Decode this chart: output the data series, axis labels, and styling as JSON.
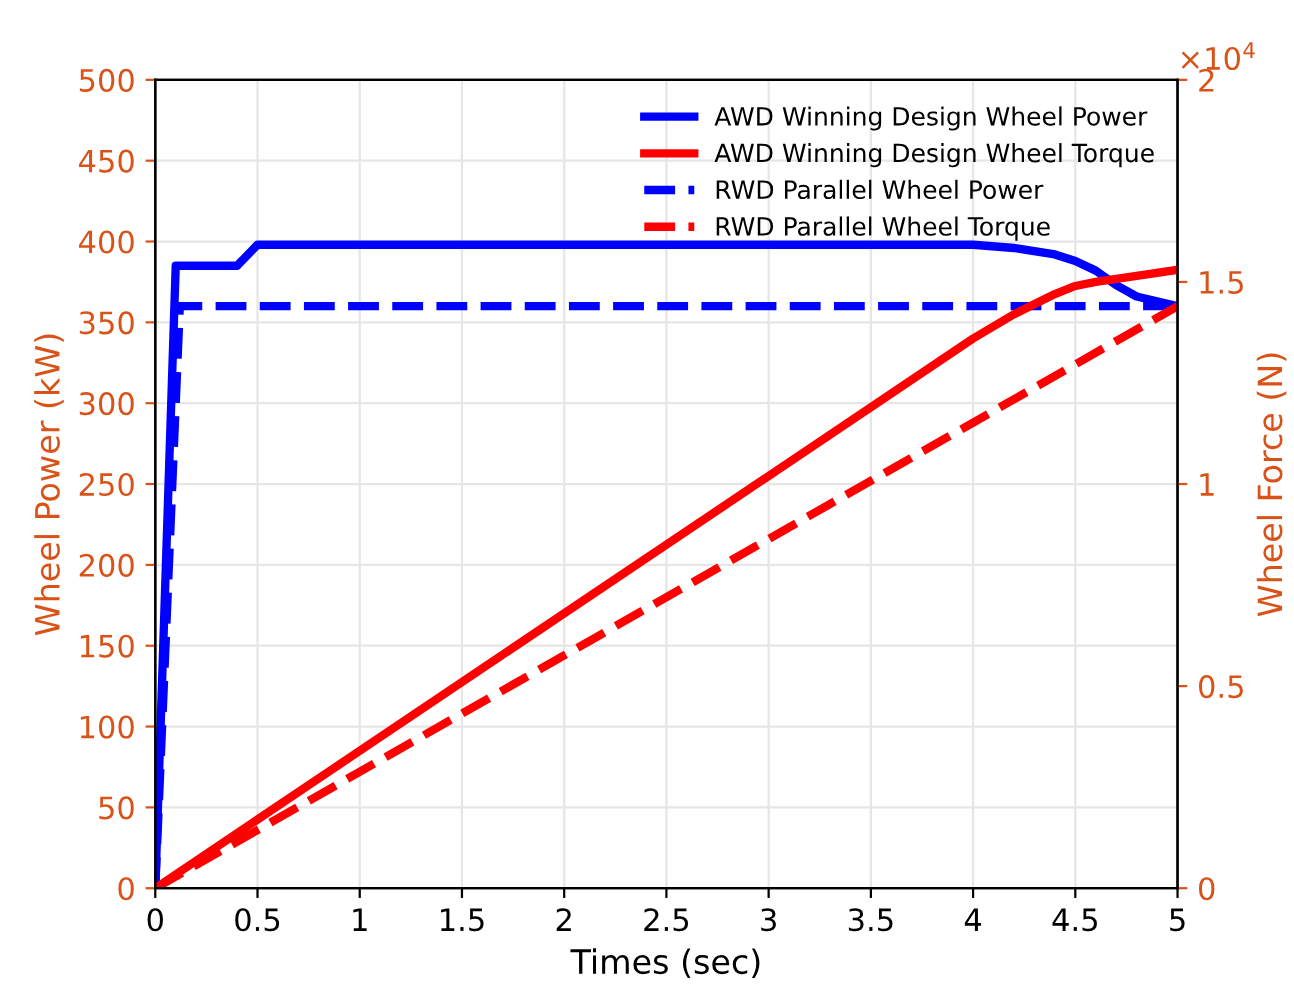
{
  "chart_data": {
    "type": "line",
    "xlabel": "Times (sec)",
    "ylabel": "Wheel Power (kW)",
    "y2label": "Wheel Force (N)",
    "xlim": [
      0,
      5
    ],
    "xticks": [
      0,
      0.5,
      1,
      1.5,
      2,
      2.5,
      3,
      3.5,
      4,
      4.5,
      5
    ],
    "ylim": [
      0,
      500
    ],
    "yticks": [
      0,
      50,
      100,
      150,
      200,
      250,
      300,
      350,
      400,
      450,
      500
    ],
    "y2lim": [
      0,
      2
    ],
    "y2ticks": [
      0,
      0.5,
      1,
      1.5,
      2
    ],
    "annotations": [
      "×10$^{4}$"
    ],
    "grid": true,
    "legend": "top right",
    "series": [
      {
        "name": "AWD Winning Design Wheel Power",
        "color": "#0000ff",
        "line_style": "solid",
        "x": [
          0,
          0.1,
          0.4,
          0.5,
          4.0,
          4.2,
          4.4,
          4.5,
          4.6,
          4.7,
          4.8,
          5
        ],
        "values": [
          0,
          385,
          385,
          398,
          398,
          396,
          392,
          388,
          382,
          373,
          366,
          360
        ]
      },
      {
        "name": "AWD Winning Design Wheel Torque",
        "color": "#ff0000",
        "axis": "y2",
        "line_style": "solid",
        "x": [
          0,
          4.0,
          4.2,
          4.4,
          4.5,
          4.6,
          4.8,
          5
        ],
        "values": [
          0,
          1.36,
          1.42,
          1.47,
          1.49,
          1.5,
          1.515,
          1.53
        ]
      },
      {
        "name": "RWD Parallel Wheel Power",
        "color": "#0000ff",
        "line_style": "dashed",
        "x": [
          0,
          0.12,
          5
        ],
        "values": [
          0,
          360,
          360
        ]
      },
      {
        "name": "RWD Parallel Wheel Torque",
        "color": "#ff0000",
        "axis": "y2",
        "line_style": "dashed",
        "x": [
          0,
          5
        ],
        "values": [
          0,
          1.44
        ]
      }
    ]
  }
}
